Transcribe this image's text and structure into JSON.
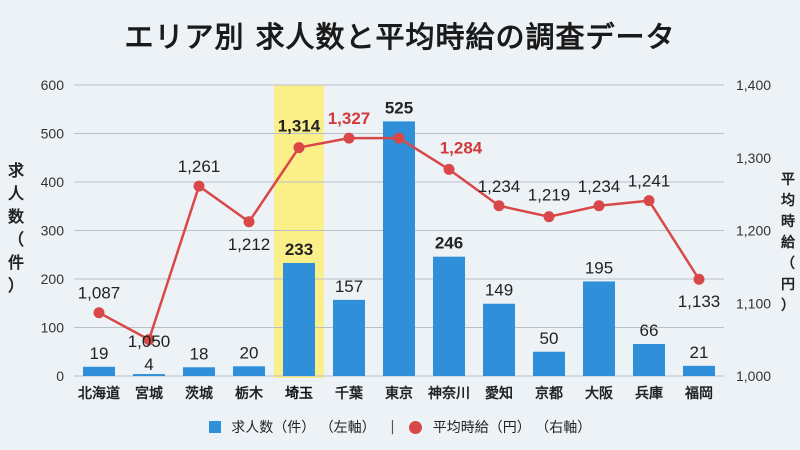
{
  "chart_data": {
    "type": "bar+line",
    "title": "エリア別 求人数と平均時給の調査データ",
    "categories": [
      "北海道",
      "宮城",
      "茨城",
      "栃木",
      "埼玉",
      "千葉",
      "東京",
      "神奈川",
      "愛知",
      "京都",
      "大阪",
      "兵庫",
      "福岡"
    ],
    "highlight_category": "埼玉",
    "series": [
      {
        "name": "求人数（件）",
        "axis_note": "（左軸）",
        "type": "bar",
        "color": "#2f8fd8",
        "values": [
          19,
          4,
          18,
          20,
          233,
          157,
          525,
          246,
          149,
          50,
          195,
          66,
          21
        ],
        "labels": [
          "19",
          "4",
          "18",
          "20",
          "233",
          "157",
          "525",
          "246",
          "149",
          "50",
          "195",
          "66",
          "21"
        ]
      },
      {
        "name": "平均時給（円）",
        "axis_note": "（右軸）",
        "type": "line",
        "color": "#d94848",
        "values": [
          1087,
          1050,
          1261,
          1212,
          1314,
          1327,
          1327,
          1284,
          1234,
          1219,
          1234,
          1241,
          1133
        ],
        "labels": [
          "1,087",
          "1,050",
          "1,261",
          "1,212",
          "1,314",
          "1,327",
          "",
          "1,284",
          "1,234",
          "1,219",
          "1,234",
          "1,241",
          "1,133"
        ]
      }
    ],
    "ylabel_left": "求人数（件）",
    "ylabel_right": "平均時給（円）",
    "ylim_left": [
      0,
      600
    ],
    "yticks_left": [
      "0",
      "100",
      "200",
      "300",
      "400",
      "500",
      "600"
    ],
    "ylim_right": [
      1000,
      1400
    ],
    "yticks_right": [
      "1,000",
      "1,100",
      "1,200",
      "1,300",
      "1,400"
    ],
    "grid": true,
    "legend_position": "bottom",
    "highlight_color": "#fbef8a"
  }
}
